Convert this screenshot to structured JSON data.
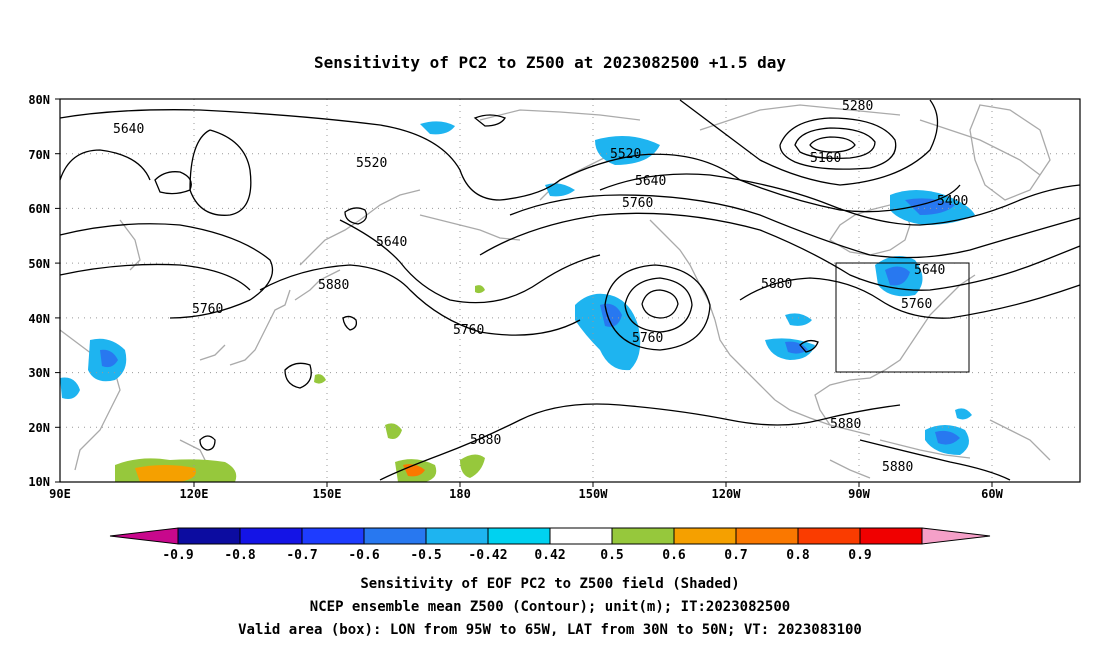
{
  "title": "Sensitivity of PC2 to Z500 at 2023082500 +1.5 day",
  "lat_labels": [
    "80N",
    "70N",
    "60N",
    "50N",
    "40N",
    "30N",
    "20N",
    "10N"
  ],
  "lon_labels": [
    "90E",
    "120E",
    "150E",
    "180",
    "150W",
    "120W",
    "90W",
    "60W"
  ],
  "contour_labels": [
    {
      "text": "5640",
      "key": "c5640a"
    },
    {
      "text": "5520",
      "key": "c5520a"
    },
    {
      "text": "5640",
      "key": "c5640b"
    },
    {
      "text": "5880",
      "key": "c5880a"
    },
    {
      "text": "5760",
      "key": "c5760a"
    },
    {
      "text": "5760",
      "key": "c5760b"
    },
    {
      "text": "5520",
      "key": "c5520b"
    },
    {
      "text": "5640",
      "key": "c5640c"
    },
    {
      "text": "5760",
      "key": "c5760c"
    },
    {
      "text": "5760",
      "key": "c5760d"
    },
    {
      "text": "5880",
      "key": "c5880b"
    },
    {
      "text": "5880",
      "key": "c5880c"
    },
    {
      "text": "5280",
      "key": "c5280"
    },
    {
      "text": "5160",
      "key": "c5160"
    },
    {
      "text": "5400",
      "key": "c5400"
    },
    {
      "text": "5640",
      "key": "c5640d"
    },
    {
      "text": "5760",
      "key": "c5760e"
    },
    {
      "text": "5880",
      "key": "c5880d"
    },
    {
      "text": "5880",
      "key": "c5880e"
    }
  ],
  "colorbar": {
    "labels": [
      "-0.9",
      "-0.8",
      "-0.7",
      "-0.6",
      "-0.5",
      "-0.42",
      "0.42",
      "0.5",
      "0.6",
      "0.7",
      "0.8",
      "0.9"
    ],
    "colors": [
      "#c8088c",
      "#0c0ca0",
      "#1414e6",
      "#1e3cff",
      "#2878f0",
      "#1eb4f0",
      "#00d2f0",
      "#ffffff",
      "#96c83c",
      "#f5a000",
      "#fa7800",
      "#fa3c00",
      "#f00000",
      "#f5a0c8"
    ]
  },
  "footer": {
    "line1": "Sensitivity of EOF PC2 to Z500 field (Shaded)",
    "line2": "NCEP ensemble mean Z500 (Contour); unit(m); IT:2023082500",
    "line3": "Valid area (box): LON from 95W to 65W, LAT from 30N to 50N; VT: 2023083100"
  }
}
